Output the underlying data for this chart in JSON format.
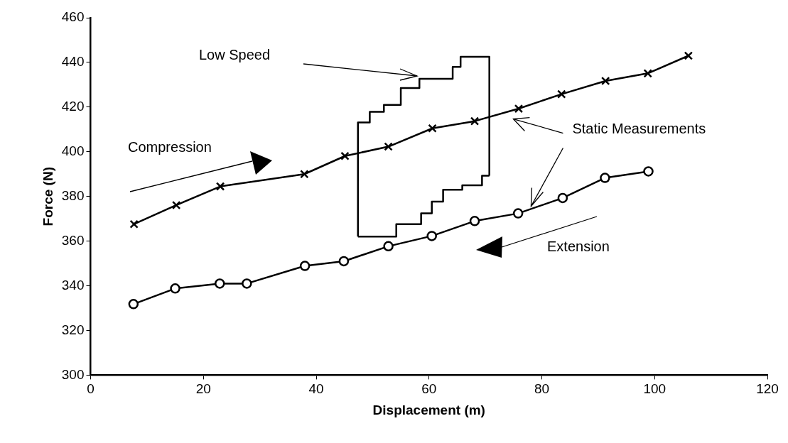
{
  "chart_data": {
    "type": "line",
    "xlabel": "Displacement (m)",
    "ylabel": "Force (N)",
    "xlim": [
      0,
      120
    ],
    "xticks": [
      0,
      20,
      40,
      60,
      80,
      100,
      120
    ],
    "ylim": [
      300,
      460
    ],
    "yticks": [
      300,
      320,
      340,
      360,
      380,
      400,
      420,
      440,
      460
    ],
    "grid": false,
    "legend": false,
    "series": [
      {
        "color": "#000000",
        "marker": "cross",
        "x": [
          7.7,
          15.2,
          23.0,
          37.9,
          45.1,
          52.8,
          60.6,
          68.1,
          75.9,
          83.5,
          91.3,
          98.8,
          106.0
        ],
        "values": [
          367.6,
          376.1,
          384.5,
          390.0,
          398.1,
          402.3,
          410.5,
          413.7,
          419.3,
          425.8,
          431.7,
          435.1,
          443.0
        ]
      },
      {
        "color": "#000000",
        "marker": "circle",
        "x": [
          7.6,
          15.0,
          22.9,
          27.7,
          38.0,
          44.9,
          52.8,
          60.5,
          68.1,
          75.8,
          83.7,
          91.2,
          98.9
        ],
        "values": [
          331.8,
          338.8,
          341.0,
          341.0,
          348.9,
          351.0,
          357.7,
          362.3,
          369.0,
          372.4,
          379.3,
          388.3,
          391.2
        ]
      },
      {
        "type": "step",
        "color": "#000000",
        "marker": "none",
        "x": [
          47.4,
          47.4,
          49.5,
          52.0,
          55.0,
          58.3,
          64.2,
          65.6,
          70.7,
          70.7
        ],
        "values": [
          362.0,
          413.1,
          417.9,
          421.0,
          428.5,
          432.7,
          438.0,
          442.5,
          442.5,
          389.3
        ]
      },
      {
        "type": "step",
        "color": "#000000",
        "marker": "none",
        "x": [
          47.4,
          54.2,
          58.6,
          60.5,
          62.5,
          65.9,
          69.4,
          70.7
        ],
        "values": [
          362.0,
          367.6,
          372.4,
          377.7,
          383.0,
          385.0,
          389.3,
          389.3
        ]
      }
    ],
    "annotations": [
      "Low Speed",
      "Compression",
      {
        "text": "Static Measurements",
        "x": 78.1,
        "y": 375.6
      },
      "Extension"
    ]
  }
}
